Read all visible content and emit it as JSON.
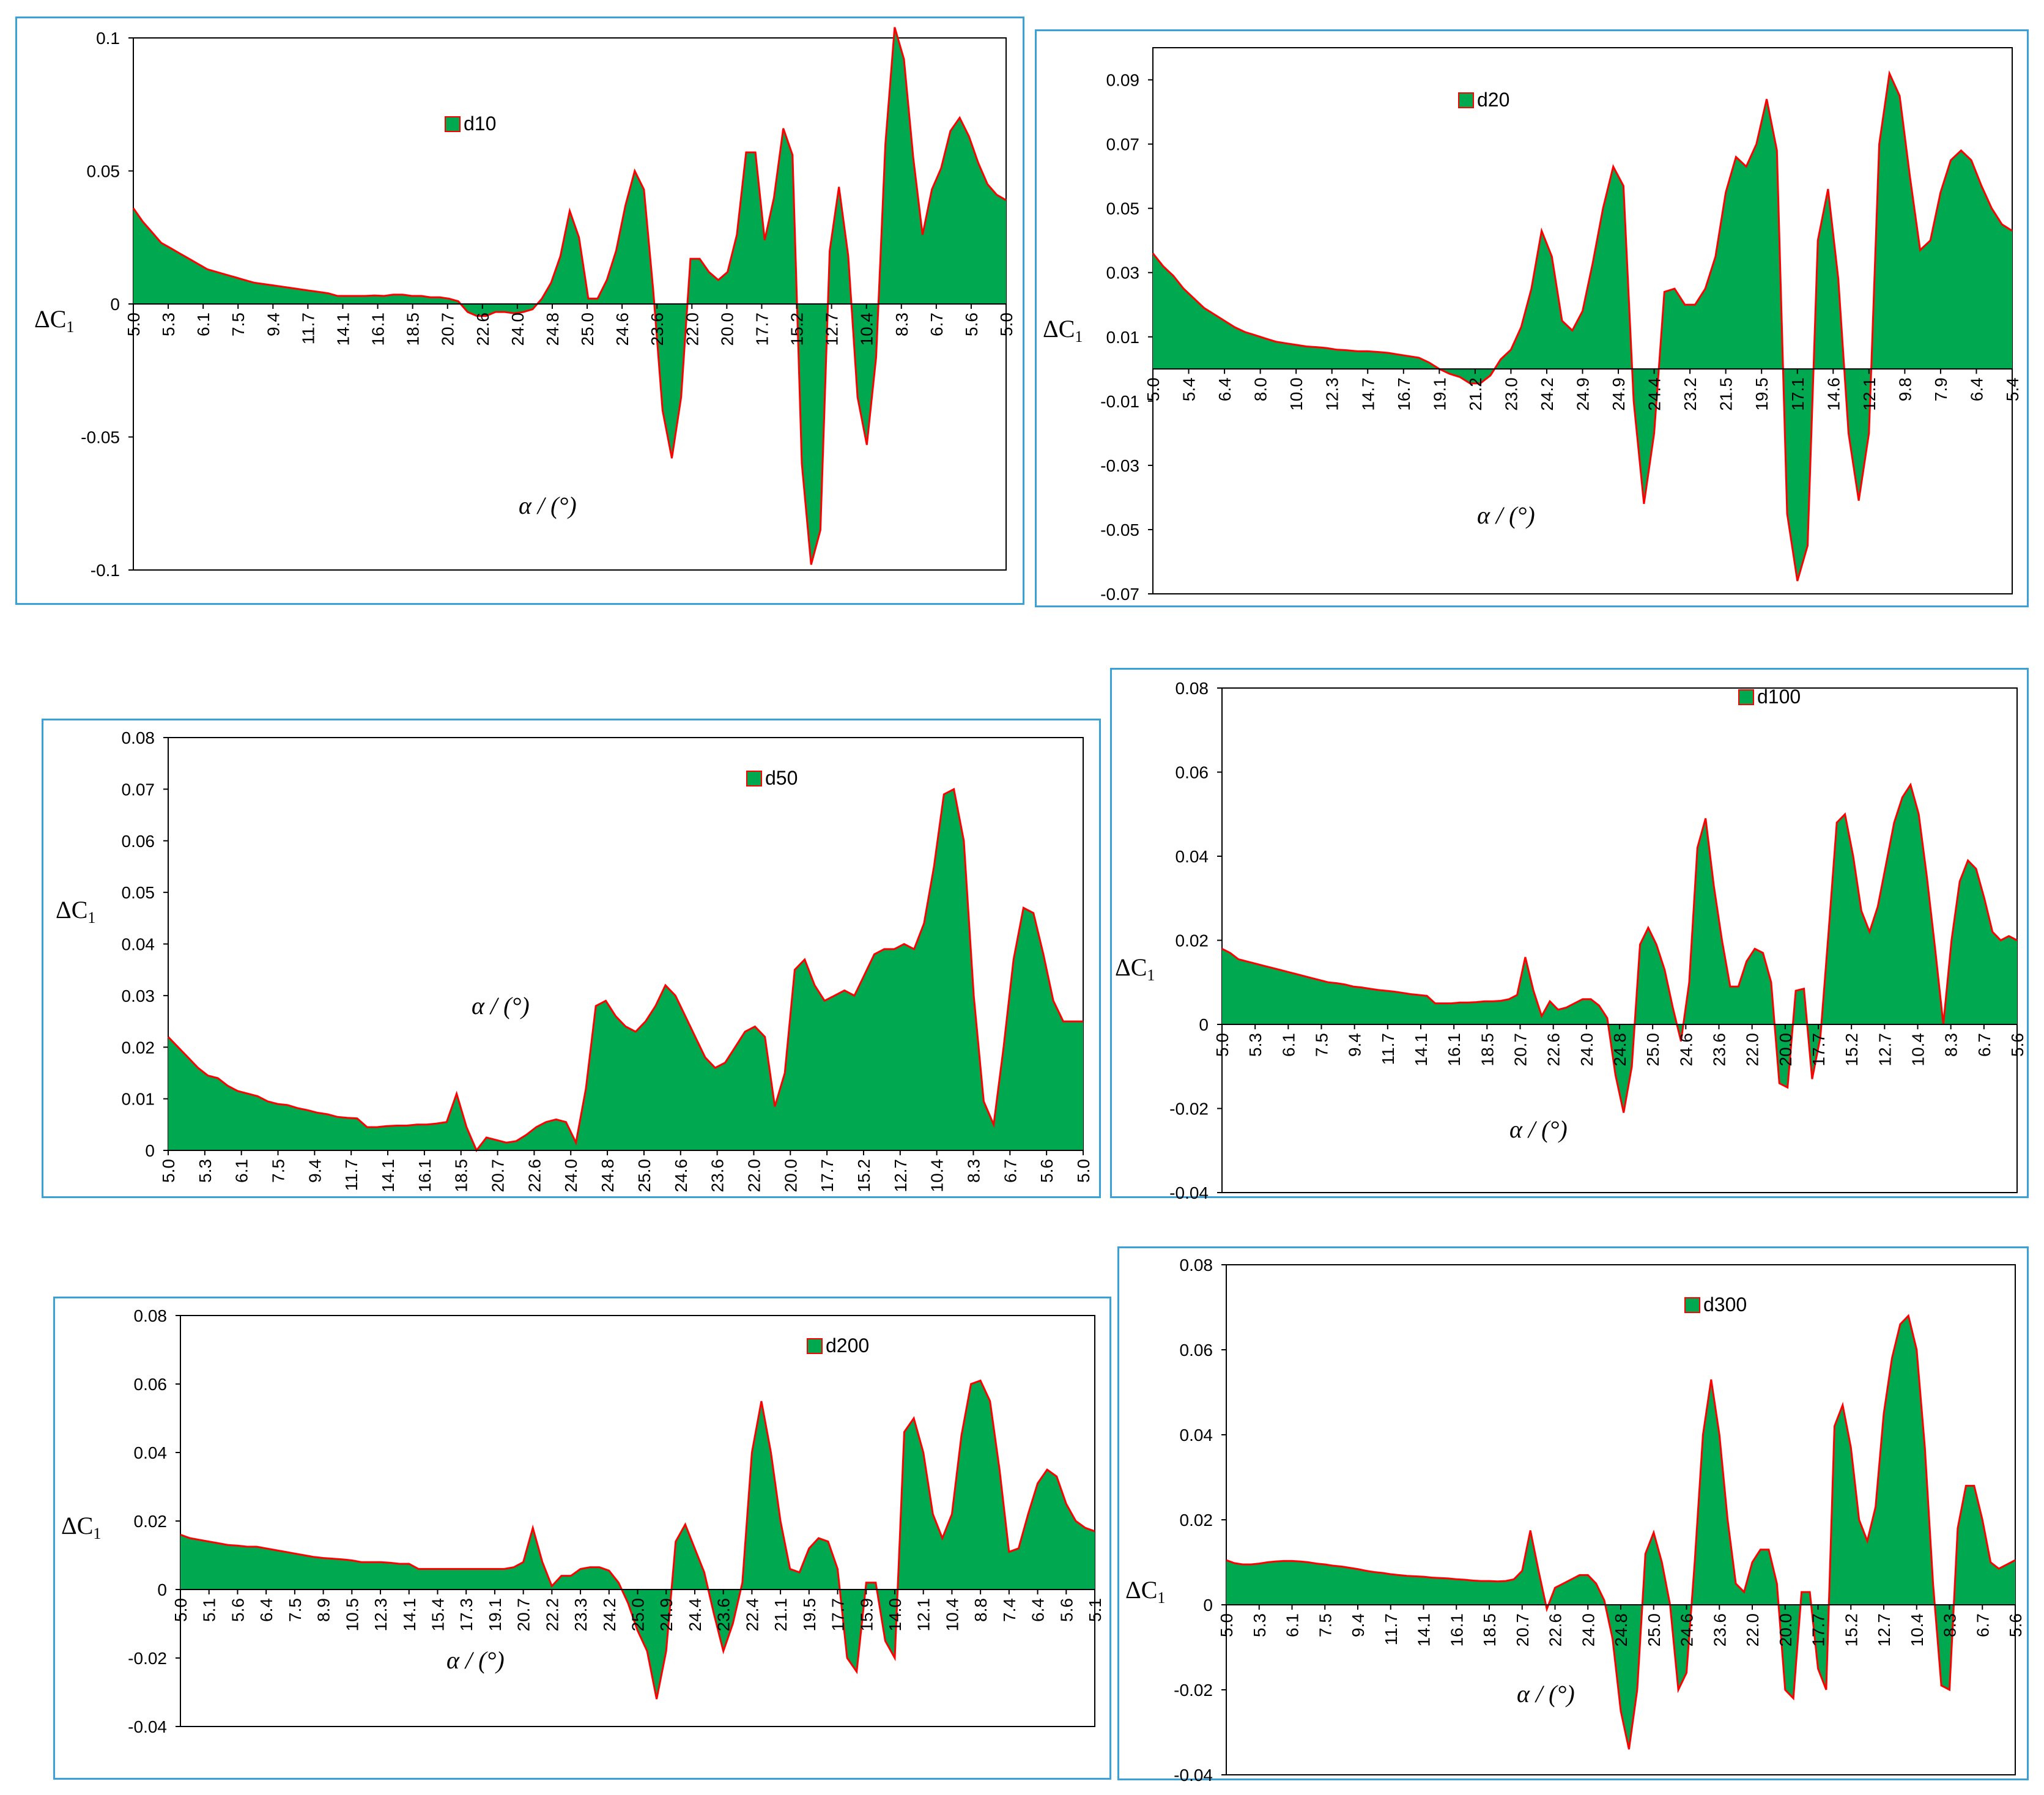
{
  "colors": {
    "fill": "#00a84f",
    "line": "#ff0000",
    "frame": "#3aa0d8"
  },
  "chart_data": [
    {
      "type": "area",
      "series_name": "d10",
      "xlabel": "α / (°)",
      "ylabel": "ΔC1",
      "ylim": [
        -0.1,
        0.1
      ],
      "yticks": [
        -0.1,
        -0.05,
        0,
        0.05,
        0.1
      ],
      "ytick_labels": [
        "-0.1",
        "-0.05",
        "0",
        "0.05",
        "0.1"
      ],
      "x_tick_labels": [
        "5.0",
        "5.3",
        "6.1",
        "7.5",
        "9.4",
        "11.7",
        "14.1",
        "16.1",
        "18.5",
        "20.7",
        "22.6",
        "24.0",
        "24.8",
        "25.0",
        "24.6",
        "23.6",
        "22.0",
        "20.0",
        "17.7",
        "15.2",
        "12.7",
        "10.4",
        "8.3",
        "6.7",
        "5.6",
        "5.0"
      ],
      "values": [
        0.036,
        0.031,
        0.027,
        0.023,
        0.021,
        0.019,
        0.017,
        0.015,
        0.013,
        0.012,
        0.011,
        0.01,
        0.009,
        0.008,
        0.0075,
        0.007,
        0.0065,
        0.006,
        0.0055,
        0.005,
        0.0045,
        0.004,
        0.003,
        0.003,
        0.003,
        0.003,
        0.0032,
        0.003,
        0.0035,
        0.0035,
        0.003,
        0.003,
        0.0025,
        0.0025,
        0.002,
        0.001,
        -0.003,
        -0.0045,
        -0.0045,
        -0.003,
        -0.003,
        -0.0035,
        -0.003,
        -0.002,
        0.002,
        0.008,
        0.018,
        0.035,
        0.025,
        0.002,
        0.002,
        0.009,
        0.02,
        0.037,
        0.05,
        0.043,
        0.005,
        -0.04,
        -0.058,
        -0.035,
        0.017,
        0.017,
        0.012,
        0.009,
        0.012,
        0.026,
        0.057,
        0.057,
        0.024,
        0.04,
        0.066,
        0.056,
        -0.06,
        -0.098,
        -0.085,
        0.02,
        0.044,
        0.018,
        -0.035,
        -0.053,
        -0.02,
        0.06,
        0.104,
        0.092,
        0.055,
        0.026,
        0.043,
        0.051,
        0.065,
        0.07,
        0.063,
        0.053,
        0.045,
        0.041,
        0.039
      ]
    },
    {
      "type": "area",
      "series_name": "d20",
      "xlabel": "α / (°)",
      "ylabel": "ΔC1",
      "ylim": [
        -0.07,
        0.1
      ],
      "yticks": [
        -0.07,
        -0.05,
        -0.03,
        -0.01,
        0.01,
        0.03,
        0.05,
        0.07,
        0.09
      ],
      "ytick_labels": [
        "-0.07",
        "-0.05",
        "-0.03",
        "-0.01",
        "0.01",
        "0.03",
        "0.05",
        "0.07",
        "0.09"
      ],
      "x_tick_labels": [
        "5.0",
        "5.4",
        "6.4",
        "8.0",
        "10.0",
        "12.3",
        "14.7",
        "16.7",
        "19.1",
        "21.2",
        "23.0",
        "24.2",
        "24.9",
        "24.9",
        "24.4",
        "23.2",
        "21.5",
        "19.5",
        "17.1",
        "14.6",
        "12.1",
        "9.8",
        "7.9",
        "6.4",
        "5.4"
      ],
      "values": [
        0.036,
        0.032,
        0.029,
        0.025,
        0.022,
        0.019,
        0.017,
        0.015,
        0.013,
        0.0115,
        0.0105,
        0.0095,
        0.0085,
        0.008,
        0.0075,
        0.007,
        0.0068,
        0.0065,
        0.006,
        0.0058,
        0.0055,
        0.0055,
        0.0053,
        0.005,
        0.0045,
        0.004,
        0.0035,
        0.002,
        0.0,
        -0.0015,
        -0.0025,
        -0.0045,
        -0.0045,
        -0.002,
        0.003,
        0.006,
        0.013,
        0.025,
        0.043,
        0.035,
        0.015,
        0.012,
        0.018,
        0.033,
        0.05,
        0.063,
        0.057,
        -0.01,
        -0.042,
        -0.02,
        0.024,
        0.025,
        0.02,
        0.02,
        0.025,
        0.035,
        0.055,
        0.066,
        0.063,
        0.07,
        0.084,
        0.068,
        -0.045,
        -0.066,
        -0.055,
        0.04,
        0.056,
        0.028,
        -0.02,
        -0.041,
        -0.02,
        0.07,
        0.092,
        0.085,
        0.06,
        0.037,
        0.04,
        0.055,
        0.065,
        0.068,
        0.065,
        0.057,
        0.05,
        0.045,
        0.043
      ]
    },
    {
      "type": "area",
      "series_name": "d50",
      "xlabel": "α / (°)",
      "ylabel": "ΔC1",
      "ylim": [
        0,
        0.08
      ],
      "yticks": [
        0,
        0.01,
        0.02,
        0.03,
        0.04,
        0.05,
        0.06,
        0.07,
        0.08
      ],
      "ytick_labels": [
        "0",
        "0.01",
        "0.02",
        "0.03",
        "0.04",
        "0.05",
        "0.06",
        "0.07",
        "0.08"
      ],
      "x_tick_labels": [
        "5.0",
        "5.3",
        "6.1",
        "7.5",
        "9.4",
        "11.7",
        "14.1",
        "16.1",
        "18.5",
        "20.7",
        "22.6",
        "24.0",
        "24.8",
        "25.0",
        "24.6",
        "23.6",
        "22.0",
        "20.0",
        "17.7",
        "15.2",
        "12.7",
        "10.4",
        "8.3",
        "6.7",
        "5.6",
        "5.0"
      ],
      "values": [
        0.022,
        0.02,
        0.018,
        0.016,
        0.0145,
        0.014,
        0.0125,
        0.0115,
        0.011,
        0.0105,
        0.0095,
        0.009,
        0.0088,
        0.0082,
        0.0078,
        0.0073,
        0.007,
        0.0065,
        0.0063,
        0.0062,
        0.0045,
        0.0045,
        0.0047,
        0.0048,
        0.0048,
        0.005,
        0.005,
        0.0052,
        0.0055,
        0.011,
        0.0045,
        0.0,
        0.0025,
        0.002,
        0.0015,
        0.0018,
        0.003,
        0.0045,
        0.0055,
        0.006,
        0.0055,
        0.0015,
        0.012,
        0.028,
        0.029,
        0.026,
        0.024,
        0.023,
        0.025,
        0.028,
        0.032,
        0.03,
        0.026,
        0.022,
        0.018,
        0.016,
        0.017,
        0.02,
        0.023,
        0.024,
        0.022,
        0.0085,
        0.015,
        0.035,
        0.037,
        0.032,
        0.029,
        0.03,
        0.031,
        0.03,
        0.034,
        0.038,
        0.039,
        0.039,
        0.04,
        0.039,
        0.044,
        0.055,
        0.069,
        0.07,
        0.06,
        0.03,
        0.0095,
        0.005,
        0.02,
        0.037,
        0.047,
        0.046,
        0.038,
        0.029,
        0.025,
        0.025,
        0.025
      ]
    },
    {
      "type": "area",
      "series_name": "d100",
      "xlabel": "α / (°)",
      "ylabel": "ΔC1",
      "ylim": [
        -0.04,
        0.08
      ],
      "yticks": [
        -0.04,
        -0.02,
        0,
        0.02,
        0.04,
        0.06,
        0.08
      ],
      "ytick_labels": [
        "-0.04",
        "-0.02",
        "0",
        "0.02",
        "0.04",
        "0.06",
        "0.08"
      ],
      "x_tick_labels": [
        "5.0",
        "5.3",
        "6.1",
        "7.5",
        "9.4",
        "11.7",
        "14.1",
        "16.1",
        "18.5",
        "20.7",
        "22.6",
        "24.0",
        "24.8",
        "25.0",
        "24.6",
        "23.6",
        "22.0",
        "20.0",
        "17.7",
        "15.2",
        "12.7",
        "10.4",
        "8.3",
        "6.7",
        "5.6"
      ],
      "values": [
        0.018,
        0.017,
        0.0155,
        0.015,
        0.0145,
        0.014,
        0.0135,
        0.013,
        0.0125,
        0.012,
        0.0115,
        0.011,
        0.0105,
        0.01,
        0.0098,
        0.0095,
        0.009,
        0.0088,
        0.0085,
        0.0082,
        0.008,
        0.0078,
        0.0075,
        0.0072,
        0.007,
        0.0068,
        0.005,
        0.005,
        0.005,
        0.0052,
        0.0052,
        0.0053,
        0.0055,
        0.0055,
        0.0056,
        0.006,
        0.007,
        0.016,
        0.008,
        0.002,
        0.0055,
        0.0035,
        0.004,
        0.005,
        0.006,
        0.006,
        0.0045,
        0.0015,
        -0.012,
        -0.021,
        -0.01,
        0.019,
        0.023,
        0.019,
        0.013,
        0.004,
        -0.004,
        0.01,
        0.042,
        0.049,
        0.033,
        0.02,
        0.009,
        0.009,
        0.015,
        0.018,
        0.017,
        0.01,
        -0.014,
        -0.015,
        0.008,
        0.0085,
        -0.013,
        -0.003,
        0.022,
        0.048,
        0.05,
        0.04,
        0.027,
        0.022,
        0.028,
        0.038,
        0.048,
        0.054,
        0.057,
        0.05,
        0.035,
        0.018,
        0.0,
        0.02,
        0.034,
        0.039,
        0.037,
        0.03,
        0.022,
        0.02,
        0.021,
        0.02
      ]
    },
    {
      "type": "area",
      "series_name": "d200",
      "xlabel": "α / (°)",
      "ylabel": "ΔC1",
      "ylim": [
        -0.04,
        0.08
      ],
      "yticks": [
        -0.04,
        -0.02,
        0,
        0.02,
        0.04,
        0.06,
        0.08
      ],
      "ytick_labels": [
        "-0.04",
        "-0.02",
        "0",
        "0.02",
        "0.04",
        "0.06",
        "0.08"
      ],
      "x_tick_labels": [
        "5.0",
        "5.1",
        "5.6",
        "6.4",
        "7.5",
        "8.9",
        "10.5",
        "12.3",
        "14.1",
        "15.4",
        "17.3",
        "19.1",
        "20.7",
        "22.2",
        "23.3",
        "24.2",
        "25.0",
        "24.9",
        "24.4",
        "23.6",
        "22.4",
        "21.1",
        "19.5",
        "17.7",
        "15.9",
        "14.0",
        "12.1",
        "10.4",
        "8.8",
        "7.4",
        "6.4",
        "5.6",
        "5.1"
      ],
      "values": [
        0.016,
        0.015,
        0.0145,
        0.014,
        0.0135,
        0.013,
        0.0128,
        0.0125,
        0.0125,
        0.012,
        0.0115,
        0.011,
        0.0105,
        0.01,
        0.0095,
        0.0092,
        0.009,
        0.0088,
        0.0085,
        0.008,
        0.008,
        0.008,
        0.0078,
        0.0075,
        0.0075,
        0.006,
        0.006,
        0.006,
        0.006,
        0.006,
        0.006,
        0.006,
        0.006,
        0.006,
        0.006,
        0.0065,
        0.008,
        0.018,
        0.008,
        0.001,
        0.004,
        0.004,
        0.006,
        0.0065,
        0.0065,
        0.0055,
        0.002,
        -0.004,
        -0.012,
        -0.018,
        -0.032,
        -0.018,
        0.014,
        0.019,
        0.012,
        0.005,
        -0.007,
        -0.018,
        -0.01,
        0.002,
        0.04,
        0.055,
        0.04,
        0.02,
        0.006,
        0.005,
        0.012,
        0.015,
        0.014,
        0.006,
        -0.02,
        -0.024,
        0.002,
        0.002,
        -0.015,
        -0.02,
        0.046,
        0.05,
        0.04,
        0.022,
        0.015,
        0.022,
        0.045,
        0.06,
        0.061,
        0.055,
        0.035,
        0.011,
        0.012,
        0.022,
        0.031,
        0.035,
        0.033,
        0.025,
        0.02,
        0.018,
        0.017
      ]
    },
    {
      "type": "area",
      "series_name": "d300",
      "xlabel": "α / (°)",
      "ylabel": "ΔC1",
      "ylim": [
        -0.04,
        0.08
      ],
      "yticks": [
        -0.04,
        -0.02,
        0,
        0.02,
        0.04,
        0.06,
        0.08
      ],
      "ytick_labels": [
        "-0.04",
        "-0.02",
        "0",
        "0.02",
        "0.04",
        "0.06",
        "0.08"
      ],
      "x_tick_labels": [
        "5.0",
        "5.3",
        "6.1",
        "7.5",
        "9.4",
        "11.7",
        "14.1",
        "16.1",
        "18.5",
        "20.7",
        "22.6",
        "24.0",
        "24.8",
        "25.0",
        "24.6",
        "23.6",
        "22.0",
        "20.0",
        "17.7",
        "15.2",
        "12.7",
        "10.4",
        "8.3",
        "6.7",
        "5.6"
      ],
      "values": [
        0.0105,
        0.0098,
        0.0095,
        0.0095,
        0.0097,
        0.01,
        0.0102,
        0.0103,
        0.0103,
        0.0102,
        0.01,
        0.0097,
        0.0095,
        0.0092,
        0.009,
        0.0087,
        0.0084,
        0.008,
        0.0077,
        0.0075,
        0.0072,
        0.007,
        0.0068,
        0.0067,
        0.0066,
        0.0064,
        0.0063,
        0.0062,
        0.006,
        0.0059,
        0.0057,
        0.0056,
        0.0056,
        0.0055,
        0.0056,
        0.006,
        0.008,
        0.0175,
        0.008,
        -0.001,
        0.004,
        0.005,
        0.006,
        0.007,
        0.007,
        0.005,
        0.001,
        -0.008,
        -0.025,
        -0.034,
        -0.02,
        0.012,
        0.017,
        0.01,
        0.0,
        -0.02,
        -0.016,
        0.01,
        0.04,
        0.053,
        0.04,
        0.02,
        0.005,
        0.003,
        0.01,
        0.013,
        0.013,
        0.005,
        -0.02,
        -0.022,
        0.003,
        0.003,
        -0.015,
        -0.02,
        0.042,
        0.047,
        0.037,
        0.02,
        0.015,
        0.023,
        0.045,
        0.058,
        0.066,
        0.068,
        0.06,
        0.037,
        0.005,
        -0.019,
        -0.02,
        0.018,
        0.028,
        0.028,
        0.02,
        0.01,
        0.0085,
        0.0095,
        0.0105
      ]
    }
  ]
}
